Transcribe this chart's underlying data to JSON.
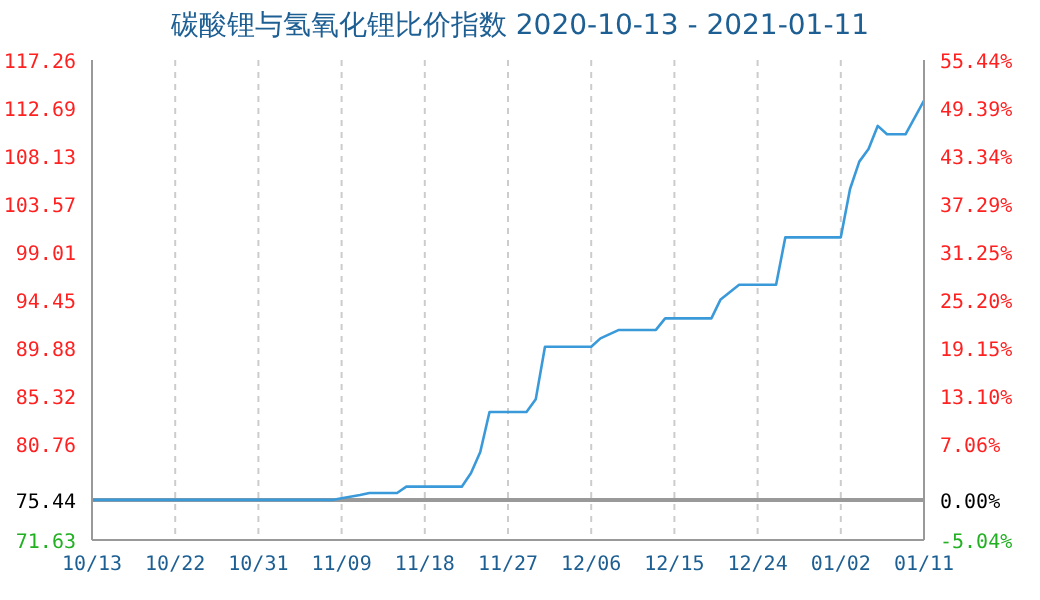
{
  "chart_data": {
    "type": "line",
    "title": "碳酸锂与氢氧化锂比价指数 2020-10-13 - 2021-01-11",
    "x": [
      "2020-10-13",
      "2020-11-08",
      "2020-11-09",
      "2020-11-11",
      "2020-11-12",
      "2020-11-15",
      "2020-11-16",
      "2020-11-22",
      "2020-11-23",
      "2020-11-24",
      "2020-11-25",
      "2020-11-29",
      "2020-11-30",
      "2020-12-01",
      "2020-12-06",
      "2020-12-07",
      "2020-12-09",
      "2020-12-13",
      "2020-12-14",
      "2020-12-19",
      "2020-12-20",
      "2020-12-22",
      "2020-12-26",
      "2020-12-27",
      "2021-01-02",
      "2021-01-03",
      "2021-01-04",
      "2021-01-05",
      "2021-01-06",
      "2021-01-07",
      "2021-01-09",
      "2021-01-11"
    ],
    "series": [
      {
        "color": "#3a9ad9",
        "values": [
          75.44,
          75.44,
          75.6,
          75.9,
          76.1,
          76.1,
          76.7,
          76.7,
          78.0,
          80.0,
          83.8,
          83.8,
          85.0,
          90.0,
          90.0,
          90.8,
          91.6,
          91.6,
          92.7,
          92.7,
          94.5,
          95.9,
          95.9,
          100.4,
          100.4,
          105.0,
          107.6,
          108.8,
          111.0,
          110.2,
          110.2,
          113.4
        ]
      }
    ],
    "xlim": [
      "2020-10-13",
      "2021-01-11"
    ],
    "xticks": [
      {
        "value": "2020-10-13",
        "label": "10/13"
      },
      {
        "value": "2020-10-22",
        "label": "10/22"
      },
      {
        "value": "2020-10-31",
        "label": "10/31"
      },
      {
        "value": "2020-11-09",
        "label": "11/09"
      },
      {
        "value": "2020-11-18",
        "label": "11/18"
      },
      {
        "value": "2020-11-27",
        "label": "11/27"
      },
      {
        "value": "2020-12-06",
        "label": "12/06"
      },
      {
        "value": "2020-12-15",
        "label": "12/15"
      },
      {
        "value": "2020-12-24",
        "label": "12/24"
      },
      {
        "value": "2021-01-02",
        "label": "01/02"
      },
      {
        "value": "2021-01-11",
        "label": "01/11"
      }
    ],
    "ylim": [
      71.63,
      117.26
    ],
    "yticks": [
      71.63,
      75.44,
      80.76,
      85.32,
      89.88,
      94.45,
      99.01,
      103.57,
      108.13,
      112.69,
      117.26
    ],
    "y2lim": [
      -5.04,
      55.44
    ],
    "y2ticks": [
      {
        "value": -5.04,
        "label": "-5.04%"
      },
      {
        "value": 0,
        "label": "0.00%"
      },
      {
        "value": 7.06,
        "label": "7.06%"
      },
      {
        "value": 13.1,
        "label": "13.10%"
      },
      {
        "value": 19.15,
        "label": "19.15%"
      },
      {
        "value": 25.2,
        "label": "25.20%"
      },
      {
        "value": 31.25,
        "label": "31.25%"
      },
      {
        "value": 37.29,
        "label": "37.29%"
      },
      {
        "value": 43.34,
        "label": "43.34%"
      },
      {
        "value": 49.39,
        "label": "49.39%"
      },
      {
        "value": 55.44,
        "label": "55.44%"
      }
    ],
    "ref_lines": [
      {
        "axis": "y2",
        "value": 0,
        "color": "#999999"
      }
    ],
    "grid": true,
    "marker": "none",
    "line_style": "solid",
    "legend": false
  }
}
